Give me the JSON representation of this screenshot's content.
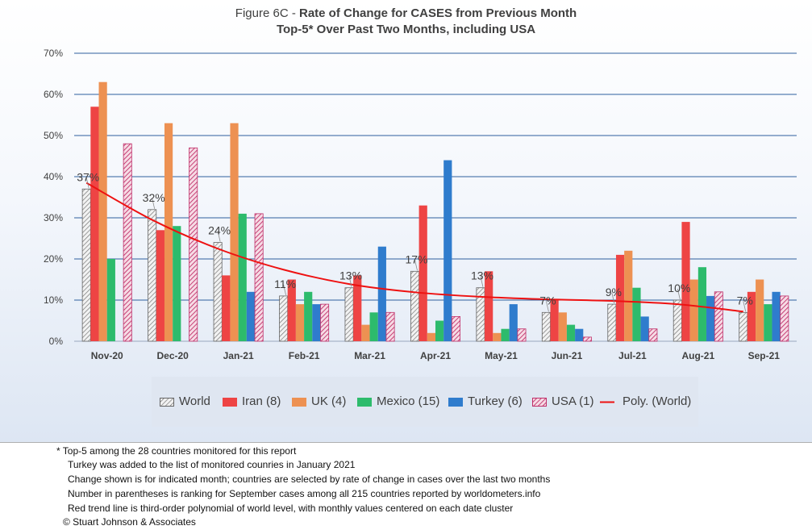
{
  "title": {
    "prefix": "Figure 6C - ",
    "main": "Rate of Change for CASES from Previous Month",
    "subtitle": "Top-5* Over Past Two Months, including USA"
  },
  "colors": {
    "World": "#d9d9d9",
    "Iran": "#ee4444",
    "UK": "#ed9152",
    "Mexico": "#2dbb6c",
    "Turkey": "#2f7ccd",
    "USA": "#c73a6a",
    "trend": "#ee1111"
  },
  "legend": {
    "world": "World",
    "iran": "Iran (8)",
    "uk": "UK (4)",
    "mexico": "Mexico (15)",
    "turkey": "Turkey (6)",
    "usa": "USA (1)",
    "trend": "Poly. (World)"
  },
  "footnotes": {
    "line1": "* Top-5 among the 28 countries monitored for this report",
    "line2": "Turkey was added to the list of monitored counries in January 2021",
    "line3": "Change shown is for indicated month; countries are selected by rate of change in cases over the last two months",
    "line4": "Number in parentheses is ranking for September cases among all 215 countries reported by worldometers.info",
    "line5": "Red trend line is third-order polynomial of world level, with monthly values centered on each date cluster",
    "line6": "© Stuart Johnson & Associates"
  },
  "chart_data": {
    "type": "bar",
    "categories": [
      "Nov-20",
      "Dec-20",
      "Jan-21",
      "Feb-21",
      "Mar-21",
      "Apr-21",
      "May-21",
      "Jun-21",
      "Jul-21",
      "Aug-21",
      "Sep-21"
    ],
    "ylim": [
      0,
      70
    ],
    "yticks": [
      "0%",
      "10%",
      "20%",
      "30%",
      "40%",
      "50%",
      "60%",
      "70%"
    ],
    "grid": true,
    "legend_position": "bottom",
    "series": [
      {
        "name": "World",
        "values": [
          37,
          32,
          24,
          11,
          13,
          17,
          13,
          7,
          9,
          10,
          7
        ],
        "labels": [
          "37%",
          "32%",
          "24%",
          "11%",
          "13%",
          "17%",
          "13%",
          "7%",
          "9%",
          "10%",
          "7%"
        ]
      },
      {
        "name": "Iran (8)",
        "values": [
          57,
          27,
          16,
          15,
          16,
          33,
          17,
          10,
          21,
          29,
          12
        ]
      },
      {
        "name": "UK (4)",
        "values": [
          63,
          53,
          53,
          9,
          4,
          2,
          2,
          7,
          22,
          15,
          15
        ]
      },
      {
        "name": "Mexico (15)",
        "values": [
          20,
          28,
          31,
          12,
          7,
          5,
          3,
          4,
          13,
          18,
          9
        ]
      },
      {
        "name": "Turkey (6)",
        "values": [
          null,
          null,
          12,
          9,
          23,
          44,
          9,
          3,
          6,
          11,
          12
        ]
      },
      {
        "name": "USA (1)",
        "values": [
          48,
          47,
          31,
          9,
          7,
          6,
          3,
          1,
          3,
          12,
          11
        ]
      }
    ],
    "trendline": {
      "name": "Poly. (World)",
      "type": "polynomial-3",
      "values": [
        38.5,
        29.5,
        22.5,
        17.4,
        13.9,
        11.9,
        10.8,
        10.2,
        9.8,
        9.0,
        7.2
      ]
    }
  }
}
